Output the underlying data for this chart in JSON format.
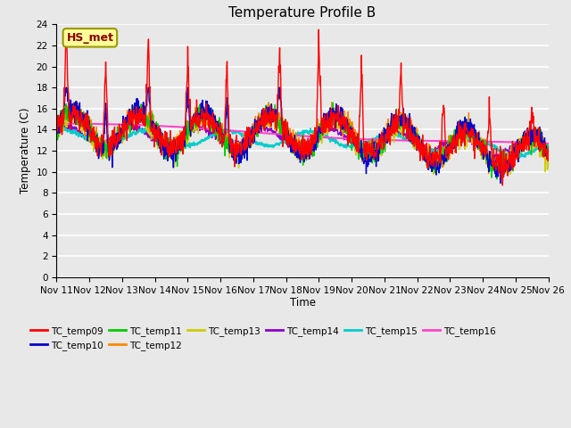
{
  "title": "Temperature Profile B",
  "xlabel": "Time",
  "ylabel": "Temperature (C)",
  "ylim": [
    0,
    24
  ],
  "yticks": [
    0,
    2,
    4,
    6,
    8,
    10,
    12,
    14,
    16,
    18,
    20,
    22,
    24
  ],
  "date_labels": [
    "Nov 11",
    "Nov 12",
    "Nov 13",
    "Nov 14",
    "Nov 15",
    "Nov 16",
    "Nov 17",
    "Nov 18",
    "Nov 19",
    "Nov 20",
    "Nov 21",
    "Nov 22",
    "Nov 23",
    "Nov 24",
    "Nov 25",
    "Nov 26"
  ],
  "annotation_text": "HS_met",
  "annotation_bg": "#FFFF99",
  "annotation_border": "#999900",
  "series_colors": {
    "TC_temp09": "#FF0000",
    "TC_temp10": "#0000CC",
    "TC_temp11": "#00CC00",
    "TC_temp12": "#FF8800",
    "TC_temp13": "#CCCC00",
    "TC_temp14": "#8800CC",
    "TC_temp15": "#00CCCC",
    "TC_temp16": "#FF44CC"
  },
  "plot_bg": "#E8E8E8",
  "grid_color": "#FFFFFF",
  "title_fontsize": 11,
  "figwidth": 6.4,
  "figheight": 4.8,
  "dpi": 100
}
